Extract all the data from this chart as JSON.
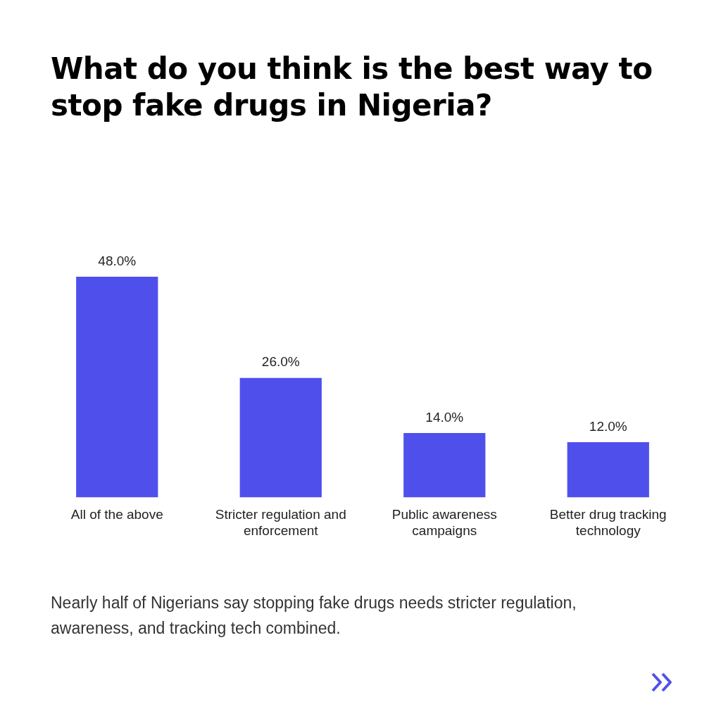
{
  "chart_data": {
    "type": "bar",
    "title": "What do you think is the best way to stop fake drugs in Nigeria?",
    "categories": [
      "All of the above",
      "Stricter regulation and enforcement",
      "Public awareness campaigns",
      "Better drug tracking technology"
    ],
    "values": [
      48.0,
      26.0,
      14.0,
      12.0
    ],
    "value_labels": [
      "48.0%",
      "26.0%",
      "14.0%",
      "12.0%"
    ],
    "color": "#4f50eb",
    "grid": false,
    "legend": false,
    "annotations": [
      "Nearly half of Nigerians say stopping fake drugs needs stricter regulation, awareness, and tracking tech combined."
    ]
  }
}
